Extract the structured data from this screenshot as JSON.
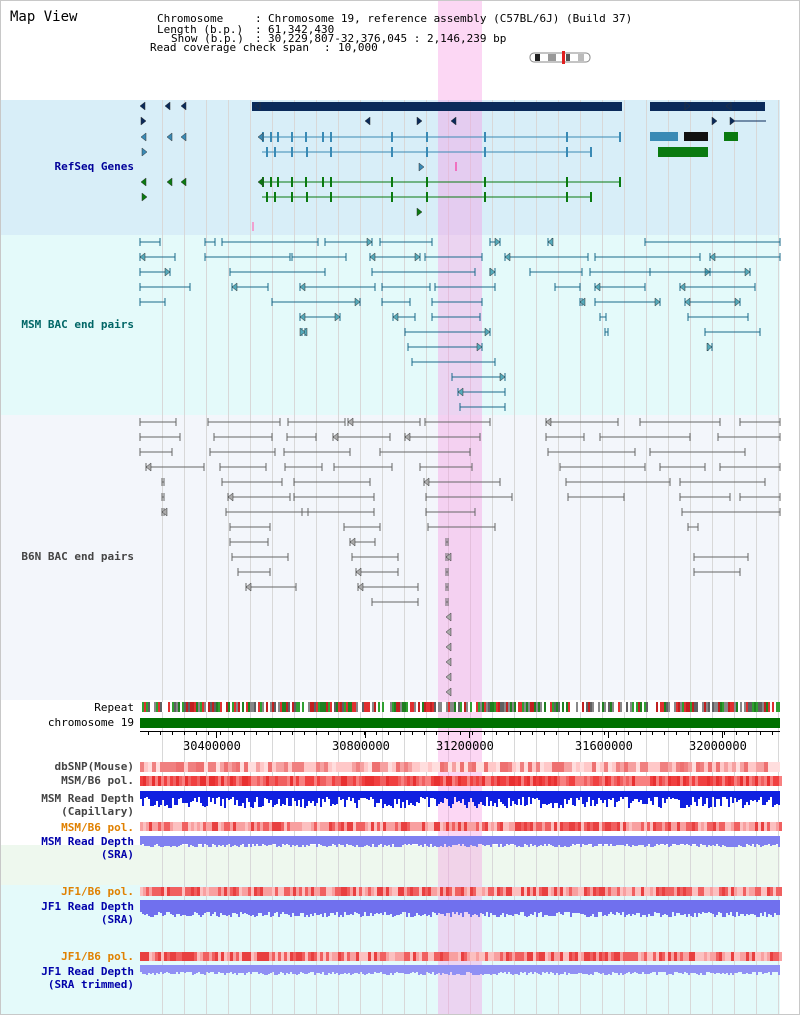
{
  "header": {
    "title": "Map View",
    "chromosome_key": "Chromosome",
    "chromosome_val": "Chromosome 19, reference assembly (C57BL/6J) (Build 37)",
    "length_key": "Length (b.p.)",
    "length_val": "61,342,430",
    "show_key": "Show (b.p.)",
    "show_val": "30,229,807-32,376,045 : 2,146,239 bp",
    "coverage_key": "Read coverage check span",
    "coverage_val": "10,000"
  },
  "tracks": {
    "refseq": "RefSeq Genes",
    "msm_bac": "MSM BAC end pairs",
    "b6n_bac": "B6N BAC end pairs",
    "repeat": "Repeat",
    "chromosome": "chromosome 19",
    "dbsnp": "dbSNP(Mouse)",
    "msm_b6_pol": "MSM/B6 pol.",
    "msm_read_depth_1": "MSM Read Depth",
    "msm_read_depth_2": "(Capillary)",
    "msm_b6_pol_sra": "MSM/B6 pol.",
    "msm_sra_1": "MSM Read Depth",
    "msm_sra_2": "(SRA)",
    "jf1_b6_pol": "JF1/B6 pol.",
    "jf1_sra_1": "JF1 Read Depth",
    "jf1_sra_2": "(SRA)",
    "jf1_b6_pol_2": "JF1/B6 pol.",
    "jf1_trim_1": "JF1 Read Depth",
    "jf1_trim_2": "(SRA trimmed)"
  },
  "axis": {
    "ticks": [
      "30400000",
      "30800000",
      "31200000",
      "31600000",
      "32000000"
    ]
  },
  "colors": {
    "refseq_bg": "#d8eef8",
    "bac_bg": "#e4fafa",
    "highlight": "#f8b8ea",
    "refseq_label": "#000099",
    "msm_label": "#006666",
    "b6n_label": "#444444",
    "pol_label": "#e08000",
    "depth_label": "#0000aa",
    "chromosome_bar": "#007000"
  },
  "icons": [
    "chromosome-ideogram-icon"
  ]
}
